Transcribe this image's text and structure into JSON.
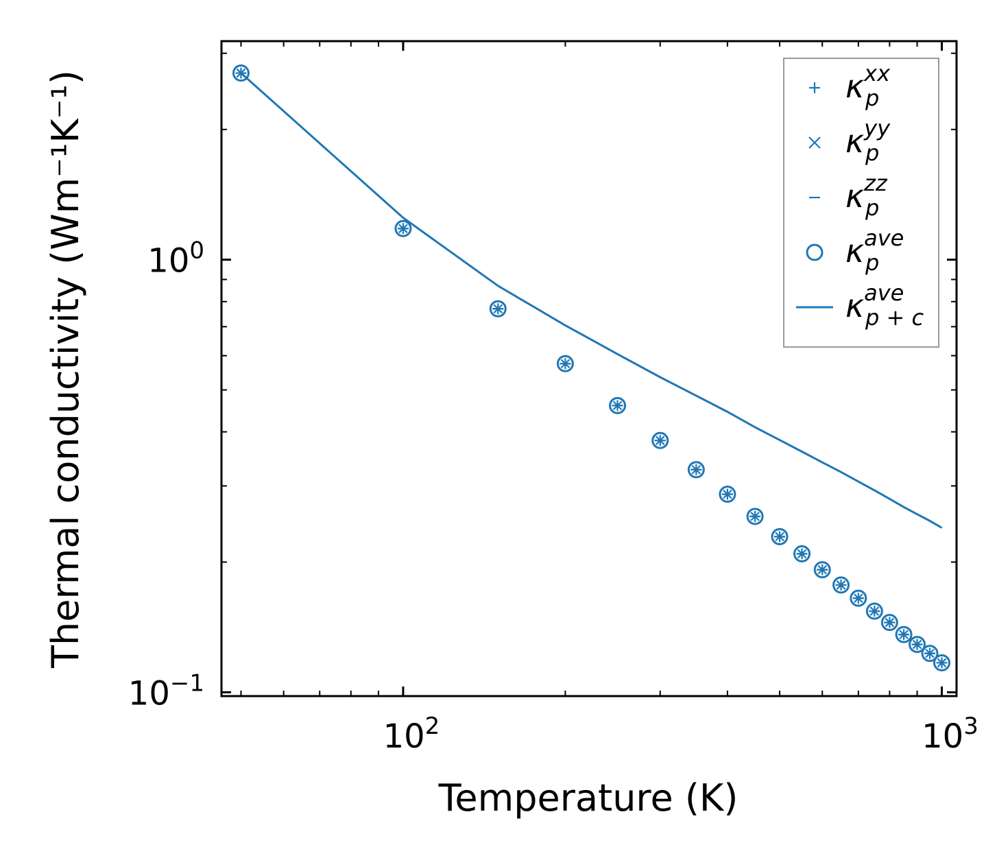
{
  "chart_data": {
    "type": "scatter",
    "title": "",
    "xlabel": "Temperature (K)",
    "ylabel": "Thermal conductivity (Wm⁻¹K⁻¹)",
    "xscale": "log",
    "yscale": "log",
    "xlim": [
      46,
      1065
    ],
    "ylim": [
      0.098,
      3.2
    ],
    "x_ticks": [
      {
        "value": 100,
        "base": "10",
        "exp": "2"
      },
      {
        "value": 1000,
        "base": "10",
        "exp": "3"
      }
    ],
    "y_ticks": [
      {
        "value": 0.1,
        "base": "10",
        "exp": "−1"
      },
      {
        "value": 1.0,
        "base": "10",
        "exp": "0"
      }
    ],
    "x": [
      50,
      100,
      150,
      200,
      250,
      300,
      350,
      400,
      450,
      500,
      550,
      600,
      650,
      700,
      750,
      800,
      850,
      900,
      950,
      1000
    ],
    "series": [
      {
        "name": "κ_p^xx",
        "marker": "plus",
        "values": [
          2.7,
          1.18,
          0.77,
          0.575,
          0.46,
          0.382,
          0.327,
          0.287,
          0.255,
          0.229,
          0.209,
          0.192,
          0.177,
          0.165,
          0.154,
          0.145,
          0.136,
          0.129,
          0.123,
          0.117
        ]
      },
      {
        "name": "κ_p^yy",
        "marker": "x",
        "values": [
          2.7,
          1.18,
          0.77,
          0.575,
          0.46,
          0.382,
          0.327,
          0.287,
          0.255,
          0.229,
          0.209,
          0.192,
          0.177,
          0.165,
          0.154,
          0.145,
          0.136,
          0.129,
          0.123,
          0.117
        ]
      },
      {
        "name": "κ_p^zz",
        "marker": "hline",
        "values": [
          2.7,
          1.18,
          0.77,
          0.575,
          0.46,
          0.382,
          0.327,
          0.287,
          0.255,
          0.229,
          0.209,
          0.192,
          0.177,
          0.165,
          0.154,
          0.145,
          0.136,
          0.129,
          0.123,
          0.117
        ]
      },
      {
        "name": "κ_p^ave",
        "marker": "circle",
        "values": [
          2.7,
          1.18,
          0.77,
          0.575,
          0.46,
          0.382,
          0.327,
          0.287,
          0.255,
          0.229,
          0.209,
          0.192,
          0.177,
          0.165,
          0.154,
          0.145,
          0.136,
          0.129,
          0.123,
          0.117
        ]
      },
      {
        "name": "κ_p+c^ave",
        "marker": "line",
        "values": [
          2.7,
          1.25,
          0.87,
          0.705,
          0.605,
          0.535,
          0.485,
          0.445,
          0.41,
          0.383,
          0.36,
          0.34,
          0.323,
          0.307,
          0.293,
          0.28,
          0.268,
          0.258,
          0.249,
          0.24
        ]
      }
    ],
    "legend": {
      "position": "top-right",
      "entries": [
        {
          "sym": "κ",
          "sub": "p",
          "sup": "xx"
        },
        {
          "sym": "κ",
          "sub": "p",
          "sup": "yy"
        },
        {
          "sym": "κ",
          "sub": "p",
          "sup": "zz"
        },
        {
          "sym": "κ",
          "sub": "p",
          "sup": "ave"
        },
        {
          "sym": "κ",
          "sub": "p + c",
          "sup": "ave"
        }
      ]
    },
    "colors": {
      "series": "#1f77b4",
      "axis": "#000000",
      "legend_border": "#999999"
    }
  }
}
